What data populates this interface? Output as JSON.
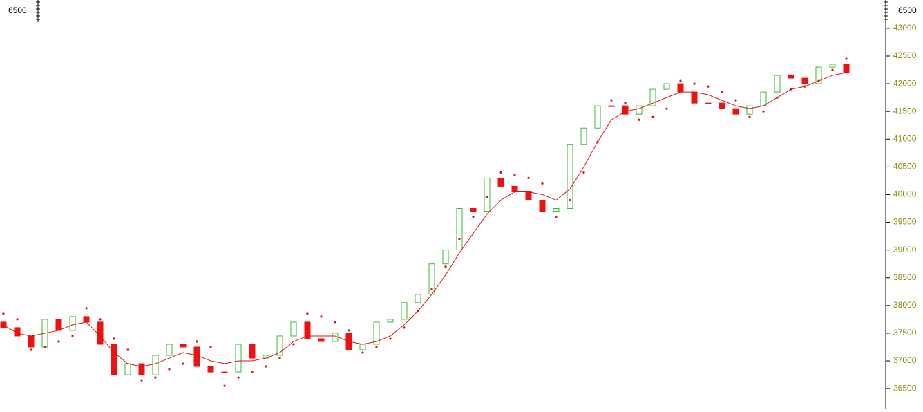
{
  "chart_data": {
    "type": "candlestick",
    "left_corner_label": "6500",
    "right_corner_label": "6500",
    "open": [
      37700,
      37600,
      37450,
      37250,
      37750,
      37550,
      37800,
      37700,
      37300,
      36750,
      36950,
      36750,
      37100,
      37300,
      37250,
      36900,
      36800,
      36800,
      37300,
      37050,
      37100,
      37450,
      37700,
      37400,
      37350,
      37500,
      37200,
      37300,
      37700,
      37750,
      38050,
      38200,
      38750,
      39000,
      39750,
      39700,
      40300,
      40150,
      40050,
      39900,
      39700,
      39750,
      40900,
      41200,
      41600,
      41600,
      41450,
      41600,
      41900,
      42000,
      41850,
      41650,
      41650,
      41550,
      41450,
      41600,
      41850,
      42150,
      42100,
      42000,
      42300,
      42350
    ],
    "close": [
      37600,
      37450,
      37250,
      37750,
      37550,
      37800,
      37700,
      37300,
      36750,
      36950,
      36750,
      37100,
      37300,
      37250,
      36900,
      36800,
      36800,
      37300,
      37050,
      37100,
      37450,
      37700,
      37400,
      37350,
      37500,
      37200,
      37300,
      37700,
      37750,
      38050,
      38200,
      38750,
      39000,
      39750,
      39700,
      40300,
      40150,
      40050,
      39900,
      39700,
      39750,
      40900,
      41200,
      41600,
      41600,
      41450,
      41600,
      41900,
      42000,
      41850,
      41650,
      41650,
      41550,
      41450,
      41600,
      41850,
      42150,
      42100,
      42000,
      42300,
      42350,
      42200
    ],
    "ma_values": [
      37650,
      37500,
      37450,
      37500,
      37550,
      37650,
      37700,
      37450,
      37150,
      36950,
      36900,
      36950,
      37050,
      37150,
      37100,
      37000,
      36950,
      37000,
      37000,
      37050,
      37150,
      37350,
      37450,
      37450,
      37450,
      37350,
      37300,
      37350,
      37450,
      37650,
      37900,
      38200,
      38550,
      38950,
      39300,
      39650,
      39900,
      40050,
      40050,
      40000,
      39900,
      40100,
      40500,
      40950,
      41350,
      41500,
      41550,
      41650,
      41750,
      41850,
      41850,
      41800,
      41700,
      41600,
      41550,
      41600,
      41750,
      41900,
      41950,
      42050,
      42150,
      42200
    ],
    "sar_values": [
      37850,
      37750,
      37200,
      37250,
      37350,
      37450,
      37950,
      37750,
      37400,
      37200,
      36650,
      36700,
      36850,
      36950,
      37350,
      37250,
      36550,
      36700,
      36800,
      36900,
      37050,
      37300,
      37850,
      37800,
      37700,
      37550,
      37150,
      37250,
      37400,
      37600,
      37900,
      38300,
      38700,
      39200,
      39600,
      39950,
      40400,
      40350,
      40300,
      40200,
      39600,
      39900,
      40400,
      40950,
      41700,
      41650,
      41350,
      41400,
      41550,
      42050,
      42000,
      41950,
      41850,
      41700,
      41400,
      41500,
      41750,
      41900,
      41950,
      42050,
      42250,
      42450
    ],
    "up_color": "#33bb33",
    "down_color": "#ee1111",
    "ma_color": "#dd1111",
    "sar_color": "#dd1111",
    "tick_color": "#8a8a00",
    "ylim": [
      36140,
      43510
    ],
    "yticks": [
      36500,
      37000,
      37500,
      38000,
      38500,
      39000,
      39500,
      40000,
      40500,
      41000,
      41500,
      42000,
      42500,
      43000
    ]
  }
}
